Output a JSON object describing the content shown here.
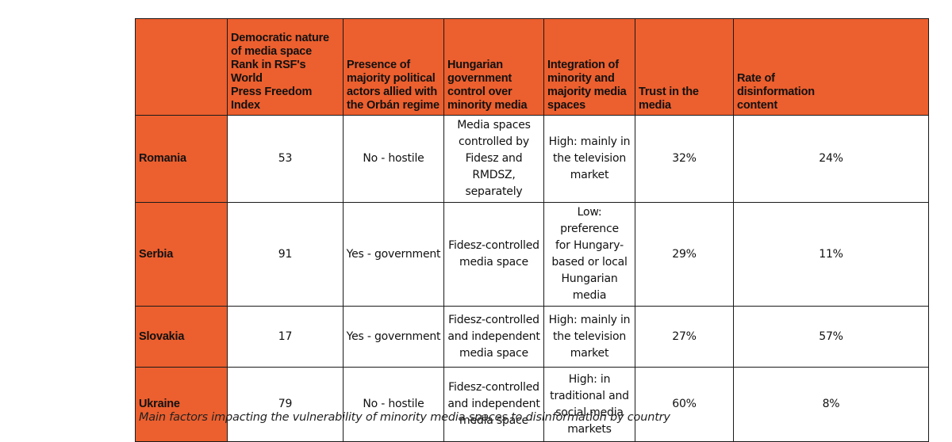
{
  "table": {
    "headers": [
      "",
      "Democratic nature\nof media space\nRank in RSF's World\nPress Freedom\nIndex",
      "Presence of\nmajority political\nactors allied with\nthe Orbán regime",
      "Hungarian\ngovernment\ncontrol over\nminority media",
      "Integration of\nminority and\nmajority media\nspaces",
      "Trust in the\nmedia",
      "Rate of\ndisinformation\ncontent"
    ],
    "rows": [
      {
        "country": "Romania",
        "rank": "53",
        "majority_actors": "No - hostile",
        "control": "Media spaces\ncontrolled by\nFidesz and RMDSZ,\nseparately",
        "integration": "High: mainly in\nthe television\nmarket",
        "trust": "32%",
        "disinfo": "24%"
      },
      {
        "country": "Serbia",
        "rank": "91",
        "majority_actors": "Yes - government",
        "control": "Fidesz-controlled\nmedia space",
        "integration": "Low: preference\nfor Hungary-\nbased or local\nHungarian media",
        "trust": "29%",
        "disinfo": "11%"
      },
      {
        "country": "Slovakia",
        "rank": "17",
        "majority_actors": "Yes - government",
        "control": "Fidesz-controlled\nand independent\nmedia space",
        "integration": "High: mainly in\nthe television\nmarket",
        "trust": "27%",
        "disinfo": "57%"
      },
      {
        "country": "Ukraine",
        "rank": "79",
        "majority_actors": "No - hostile",
        "control": "Fidesz-controlled\nand independent\nmedia space",
        "integration": "High: in\ntraditional and\nsocial media\nmarkets",
        "trust": "60%",
        "disinfo": "8%"
      }
    ]
  },
  "caption": "Main factors impacting the vulnerability of minority media spaces to disinformation by country",
  "colors": {
    "header_bg": "#ec5f2e",
    "border": "#1a1a1a",
    "text": "#111111"
  }
}
